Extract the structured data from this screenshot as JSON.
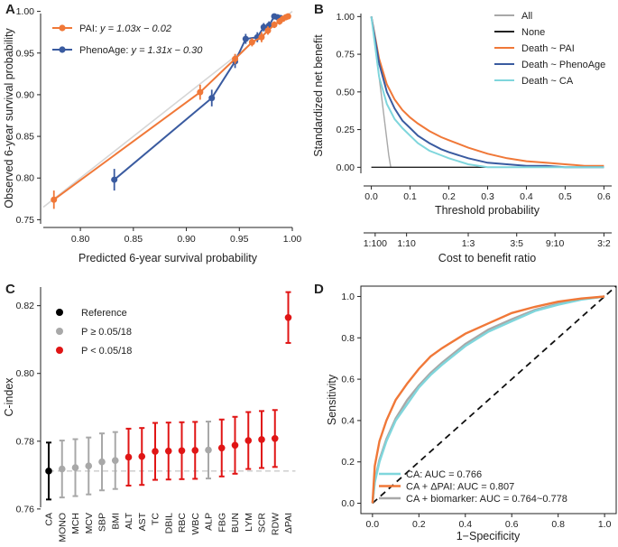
{
  "colors": {
    "pai": "#F07838",
    "phenoage": "#3A5BA0",
    "all": "#A8A8A8",
    "none": "#222222",
    "ca": "#7FD6DC",
    "reference": "#000000",
    "nonsig": "#A8A8A8",
    "sig": "#E01515",
    "diag": "#D6D6D6"
  },
  "chart_data": [
    {
      "panel": "A",
      "type": "scatter",
      "xlabel": "Predicted 6-year survival probability",
      "ylabel": "Observed 6-year survival probability",
      "xlim": [
        0.765,
        1.0
      ],
      "ylim": [
        0.745,
        1.005
      ],
      "xticks": [
        "0.80",
        "0.85",
        "0.90",
        "0.95",
        "1.00"
      ],
      "yticks": [
        "0.75",
        "0.80",
        "0.85",
        "0.90",
        "0.95",
        "1.00"
      ],
      "diagonal_reference": true,
      "series": [
        {
          "name": "PAI",
          "equation": "y = 1.03x − 0.02",
          "x": [
            0.775,
            0.913,
            0.946,
            0.962,
            0.971,
            0.977,
            0.983,
            0.988,
            0.991,
            0.994,
            0.996
          ],
          "y": [
            0.774,
            0.903,
            0.943,
            0.963,
            0.969,
            0.977,
            0.984,
            0.988,
            0.991,
            0.993,
            0.994
          ],
          "err": [
            0.011,
            0.009,
            0.006,
            0.005,
            0.006,
            0.005,
            0.004,
            0.004,
            0.003,
            0.003,
            0.002
          ]
        },
        {
          "name": "PhenoAge",
          "equation": "y = 1.31x − 0.30",
          "x": [
            0.832,
            0.924,
            0.946,
            0.956,
            0.967,
            0.973,
            0.978,
            0.983,
            0.986,
            0.989
          ],
          "y": [
            0.798,
            0.896,
            0.94,
            0.967,
            0.969,
            0.981,
            0.983,
            0.994,
            0.993,
            0.992
          ],
          "err": [
            0.013,
            0.01,
            0.008,
            0.006,
            0.006,
            0.005,
            0.005,
            0.003,
            0.003,
            0.003
          ]
        }
      ]
    },
    {
      "panel": "B",
      "type": "line",
      "xlabel": "Threshold probability",
      "ylabel": "Standardized net benefit",
      "secondary_xlabel": "Cost to benefit ratio",
      "xlim": [
        -0.02,
        0.62
      ],
      "ylim": [
        -0.04,
        1.02
      ],
      "xticks": [
        "0.0",
        "0.1",
        "0.2",
        "0.3",
        "0.4",
        "0.5",
        "0.6"
      ],
      "yticks": [
        "0.00",
        "0.25",
        "0.50",
        "0.75",
        "1.00"
      ],
      "secondary_ticks": [
        {
          "label": "1:100",
          "x": 0.0099
        },
        {
          "label": "1:10",
          "x": 0.0909
        },
        {
          "label": "1:3",
          "x": 0.25
        },
        {
          "label": "3:5",
          "x": 0.375
        },
        {
          "label": "9:10",
          "x": 0.4737
        },
        {
          "label": "3:2",
          "x": 0.6
        }
      ],
      "series": [
        {
          "name": "All",
          "x": [
            0.0,
            0.025,
            0.045,
            0.05
          ],
          "y": [
            1.0,
            0.5,
            0.08,
            0.0
          ]
        },
        {
          "name": "None",
          "x": [
            0.0,
            0.6
          ],
          "y": [
            0.0,
            0.0
          ]
        },
        {
          "name": "Death ~ PAI",
          "x": [
            0.0,
            0.02,
            0.04,
            0.06,
            0.08,
            0.1,
            0.12,
            0.15,
            0.18,
            0.2,
            0.25,
            0.3,
            0.35,
            0.4,
            0.45,
            0.5,
            0.55,
            0.6
          ],
          "y": [
            1.0,
            0.72,
            0.55,
            0.45,
            0.38,
            0.33,
            0.29,
            0.24,
            0.2,
            0.18,
            0.13,
            0.09,
            0.06,
            0.04,
            0.03,
            0.02,
            0.01,
            0.01
          ]
        },
        {
          "name": "Death ~ PhenoAge",
          "x": [
            0.0,
            0.02,
            0.04,
            0.06,
            0.08,
            0.1,
            0.12,
            0.15,
            0.18,
            0.2,
            0.25,
            0.3,
            0.35,
            0.4,
            0.45,
            0.5,
            0.55,
            0.6
          ],
          "y": [
            1.0,
            0.69,
            0.5,
            0.39,
            0.31,
            0.26,
            0.21,
            0.16,
            0.12,
            0.1,
            0.06,
            0.03,
            0.02,
            0.01,
            0.01,
            0.0,
            0.0,
            0.0
          ]
        },
        {
          "name": "Death ~ CA",
          "x": [
            0.0,
            0.02,
            0.04,
            0.06,
            0.08,
            0.1,
            0.12,
            0.15,
            0.18,
            0.2,
            0.25,
            0.3,
            0.35,
            0.4,
            0.45,
            0.5,
            0.55,
            0.6
          ],
          "y": [
            1.0,
            0.6,
            0.42,
            0.32,
            0.26,
            0.21,
            0.16,
            0.11,
            0.08,
            0.06,
            0.02,
            0.0,
            0.0,
            0.0,
            0.0,
            0.0,
            0.0,
            0.0
          ]
        }
      ]
    },
    {
      "panel": "C",
      "type": "scatter",
      "ylabel": "C-index",
      "ylim": [
        0.7605,
        0.8255
      ],
      "yticks": [
        "0.76",
        "0.78",
        "0.80",
        "0.82"
      ],
      "reference_line": 0.7712,
      "categories": [
        "CA",
        "MONO",
        "MCH",
        "MCV",
        "SBP",
        "BMI",
        "ALT",
        "AST",
        "TC",
        "DBIL",
        "RBC",
        "WBC",
        "ALP",
        "FBG",
        "BUN",
        "LYM",
        "SCR",
        "RDW",
        "ΔPAI"
      ],
      "groups": [
        "ref",
        "ns",
        "ns",
        "ns",
        "ns",
        "ns",
        "sig",
        "sig",
        "sig",
        "sig",
        "sig",
        "sig",
        "ns",
        "sig",
        "sig",
        "sig",
        "sig",
        "sig",
        "sig"
      ],
      "values": [
        0.7712,
        0.7718,
        0.7722,
        0.7727,
        0.7739,
        0.7743,
        0.7753,
        0.7755,
        0.777,
        0.7771,
        0.7772,
        0.7773,
        0.7774,
        0.778,
        0.7788,
        0.7802,
        0.7805,
        0.7808,
        0.8165
      ],
      "lower": [
        0.7628,
        0.7634,
        0.7638,
        0.7643,
        0.7655,
        0.7659,
        0.7669,
        0.7671,
        0.7686,
        0.7687,
        0.7688,
        0.7689,
        0.769,
        0.7696,
        0.7704,
        0.7718,
        0.7721,
        0.7724,
        0.809
      ],
      "upper": [
        0.7796,
        0.7802,
        0.7806,
        0.7811,
        0.7823,
        0.7827,
        0.7837,
        0.7839,
        0.7854,
        0.7855,
        0.7856,
        0.7857,
        0.7858,
        0.7864,
        0.7872,
        0.7886,
        0.7889,
        0.7892,
        0.824
      ],
      "legend": [
        {
          "key": "ref",
          "label": "Reference"
        },
        {
          "key": "ns",
          "label": "P ≥ 0.05/18"
        },
        {
          "key": "sig",
          "label": "P < 0.05/18"
        }
      ]
    },
    {
      "panel": "D",
      "type": "line",
      "xlabel": "1−Specificity",
      "ylabel": "Sensitivity",
      "xlim": [
        -0.05,
        1.05
      ],
      "ylim": [
        -0.05,
        1.05
      ],
      "xticks": [
        "0.0",
        "0.2",
        "0.4",
        "0.6",
        "0.8",
        "1.0"
      ],
      "yticks": [
        "0.0",
        "0.2",
        "0.4",
        "0.6",
        "0.8",
        "1.0"
      ],
      "chance_line": true,
      "series": [
        {
          "name": "CA: AUC = 0.766",
          "x": [
            0.0,
            0.01,
            0.03,
            0.06,
            0.1,
            0.15,
            0.2,
            0.25,
            0.3,
            0.4,
            0.5,
            0.6,
            0.7,
            0.8,
            0.9,
            1.0
          ],
          "y": [
            0.0,
            0.1,
            0.2,
            0.3,
            0.4,
            0.48,
            0.56,
            0.62,
            0.67,
            0.76,
            0.83,
            0.88,
            0.93,
            0.96,
            0.985,
            1.0
          ]
        },
        {
          "name": "CA + ΔPAI: AUC = 0.807",
          "x": [
            0.0,
            0.01,
            0.03,
            0.06,
            0.1,
            0.15,
            0.2,
            0.25,
            0.3,
            0.4,
            0.5,
            0.6,
            0.7,
            0.8,
            0.9,
            1.0
          ],
          "y": [
            0.0,
            0.18,
            0.3,
            0.4,
            0.5,
            0.58,
            0.65,
            0.71,
            0.75,
            0.82,
            0.87,
            0.92,
            0.95,
            0.975,
            0.99,
            1.0
          ]
        },
        {
          "name": "CA + biomarker: AUC = 0.764~0.778",
          "x": [
            0.0,
            0.01,
            0.03,
            0.06,
            0.1,
            0.15,
            0.2,
            0.25,
            0.3,
            0.4,
            0.5,
            0.6,
            0.7,
            0.8,
            0.9,
            1.0
          ],
          "y": [
            0.0,
            0.11,
            0.21,
            0.31,
            0.41,
            0.5,
            0.57,
            0.63,
            0.68,
            0.77,
            0.84,
            0.89,
            0.935,
            0.965,
            0.987,
            1.0
          ]
        }
      ]
    }
  ]
}
